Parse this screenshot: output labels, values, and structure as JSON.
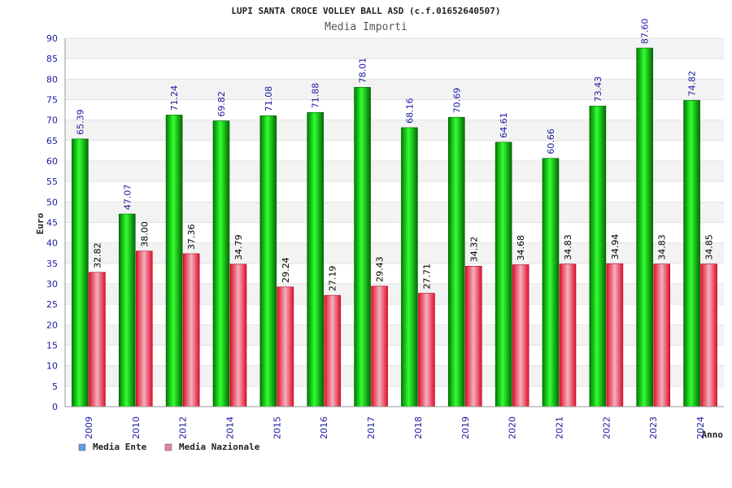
{
  "chart_data": {
    "type": "bar",
    "title": "LUPI SANTA CROCE VOLLEY BALL ASD (c.f.01652640507)",
    "subtitle": "Media Importi",
    "ylabel": "Euro",
    "xlabel": "Anno",
    "ylim": [
      0,
      90
    ],
    "yticks": [
      0,
      5,
      10,
      15,
      20,
      25,
      30,
      35,
      40,
      45,
      50,
      55,
      60,
      65,
      70,
      75,
      80,
      85,
      90
    ],
    "grid": true,
    "legend_position": "bottom-left",
    "categories": [
      "2009",
      "2010",
      "2012",
      "2014",
      "2015",
      "2016",
      "2017",
      "2018",
      "2019",
      "2020",
      "2021",
      "2022",
      "2023",
      "2024"
    ],
    "series": [
      {
        "name": "Media Ente",
        "color": "#00c000",
        "legend_color": "#5fa0e6",
        "values": [
          65.39,
          47.07,
          71.24,
          69.82,
          71.08,
          71.88,
          78.01,
          68.16,
          70.69,
          64.61,
          60.66,
          73.43,
          87.6,
          74.82
        ],
        "labels": [
          "65.39",
          "47.07",
          "71.24",
          "69.82",
          "71.08",
          "71.88",
          "78.01",
          "68.16",
          "70.69",
          "64.61",
          "60.66",
          "73.43",
          "87.60",
          "74.82"
        ]
      },
      {
        "name": "Media Nazionale",
        "color": "#e03040",
        "legend_color": "#e67fb0",
        "values": [
          32.82,
          38.0,
          37.36,
          34.79,
          29.24,
          27.19,
          29.43,
          27.71,
          34.32,
          34.68,
          34.83,
          34.94,
          34.83,
          34.85
        ],
        "labels": [
          "32.82",
          "38.00",
          "37.36",
          "34.79",
          "29.24",
          "27.19",
          "29.43",
          "27.71",
          "34.32",
          "34.68",
          "34.83",
          "34.94",
          "34.83",
          "34.85"
        ]
      }
    ]
  }
}
